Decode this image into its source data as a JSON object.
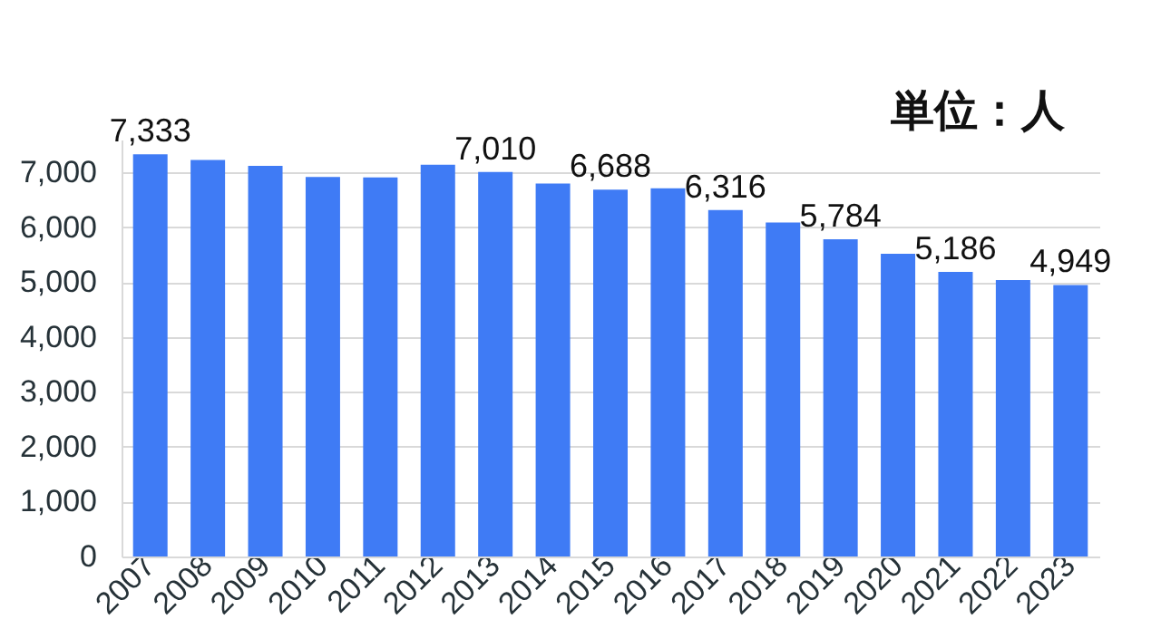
{
  "chart_data": {
    "type": "bar",
    "categories": [
      "2007",
      "2008",
      "2009",
      "2010",
      "2011",
      "2012",
      "2013",
      "2014",
      "2015",
      "2016",
      "2017",
      "2018",
      "2019",
      "2020",
      "2021",
      "2022",
      "2023"
    ],
    "values": [
      7333,
      7230,
      7120,
      6920,
      6910,
      7140,
      7010,
      6800,
      6688,
      6710,
      6316,
      6090,
      5784,
      5520,
      5186,
      5040,
      4949
    ],
    "value_labels": [
      "7,333",
      null,
      null,
      null,
      null,
      null,
      "7,010",
      null,
      "6,688",
      null,
      "6,316",
      null,
      "5,784",
      null,
      "5,186",
      null,
      "4,949"
    ],
    "color": "#3f7bf5",
    "ylim": [
      0,
      7600
    ],
    "yticks": [
      0,
      {
        "value": 1000,
        "label": "1,000"
      },
      {
        "value": 2000,
        "label": "2,000"
      },
      {
        "value": 3000,
        "label": "3,000"
      },
      {
        "value": 4000,
        "label": "4,000"
      },
      {
        "value": 5000,
        "label": "5,000"
      },
      {
        "value": 6000,
        "label": "6,000"
      },
      {
        "value": 7000,
        "label": "7,000"
      }
    ],
    "grid": "y",
    "annotations": [
      "単位：人"
    ]
  }
}
